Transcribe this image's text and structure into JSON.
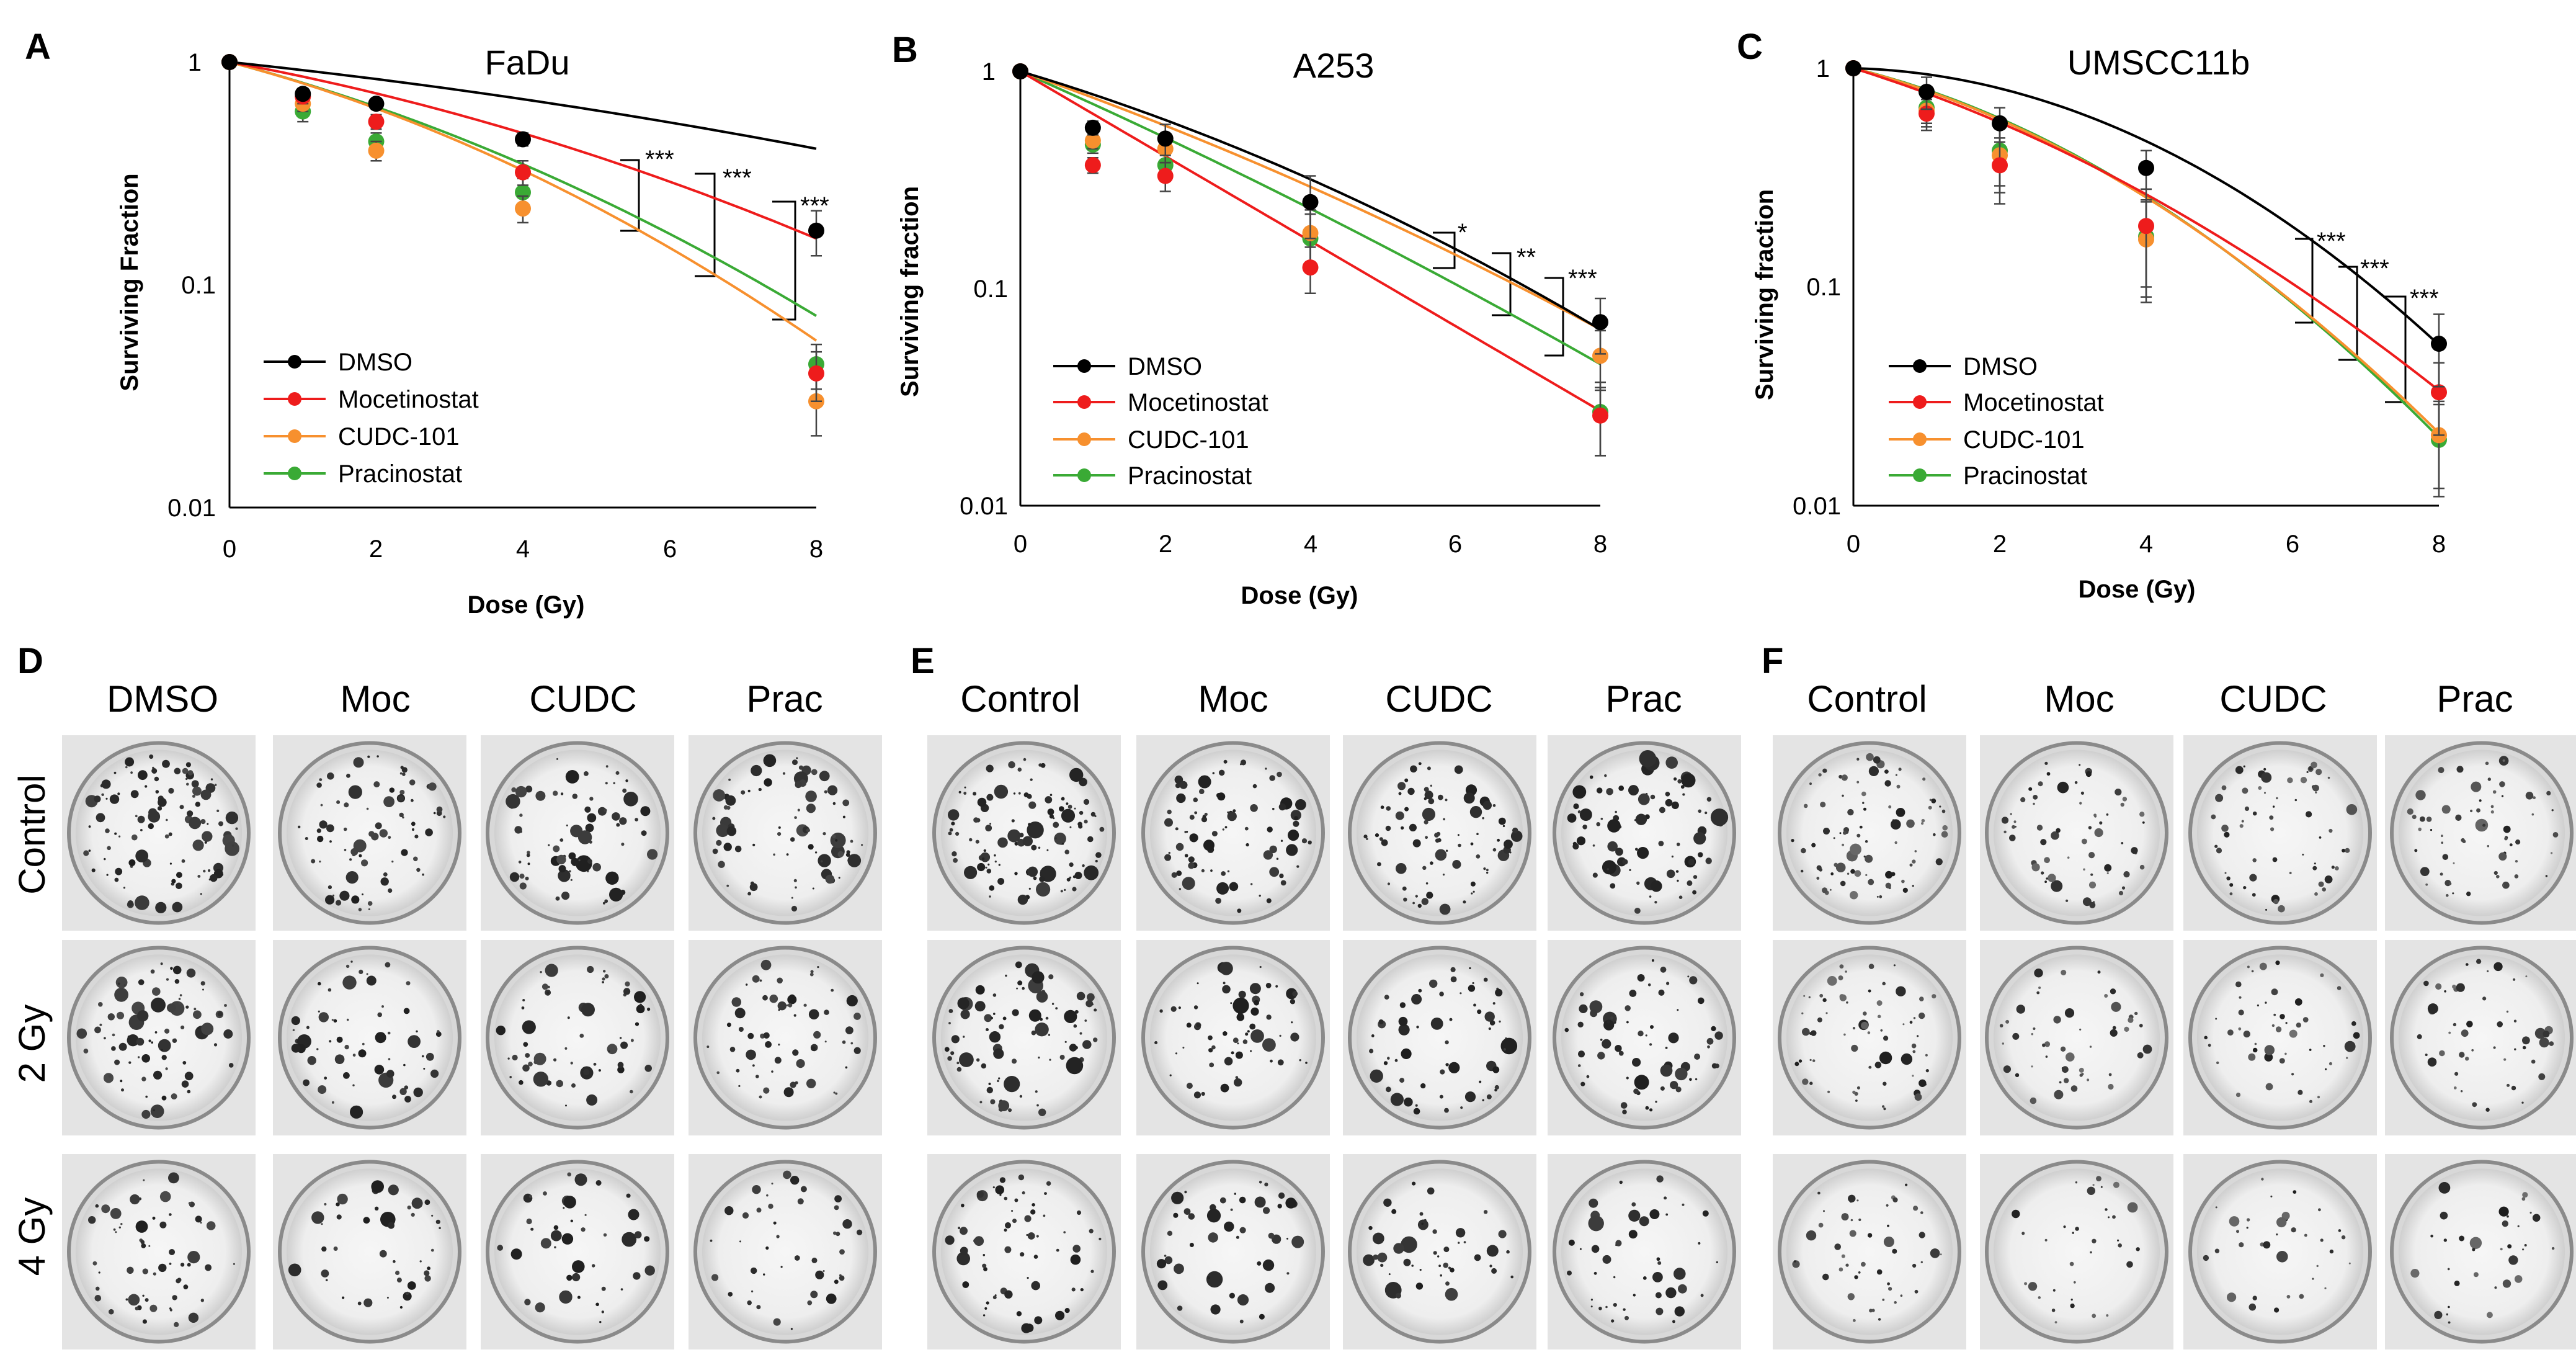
{
  "colors": {
    "DMSO": "#000000",
    "Mocetinostat": "#ee1c1c",
    "CUDC-101": "#f7902e",
    "Pracinostat": "#3aaa35"
  },
  "chart_data": [
    {
      "panel": "A",
      "type": "line",
      "title": "FaDu",
      "xlabel": "Dose (Gy)",
      "ylabel": "Surviving Fraction",
      "xlim": [
        0,
        8
      ],
      "ylim": [
        0.01,
        1
      ],
      "yscale": "log",
      "xticks": [
        "0",
        "2",
        "4",
        "6",
        "8"
      ],
      "yticks": [
        "0.01",
        "0.1",
        "1"
      ],
      "x": [
        0,
        1,
        2,
        4,
        8
      ],
      "series": [
        {
          "name": "DMSO",
          "values": [
            1,
            0.72,
            0.65,
            0.45,
            0.175
          ],
          "errors": [
            0,
            0.04,
            0.03,
            0.03,
            0.04
          ],
          "fit": [
            0.08,
            0.004
          ]
        },
        {
          "name": "Mocetinostat",
          "values": [
            1,
            0.7,
            0.54,
            0.32,
            0.04
          ],
          "errors": [
            0,
            0.05,
            0.04,
            0.04,
            0.01
          ],
          "fit": [
            0.14,
            0.011
          ]
        },
        {
          "name": "CUDC-101",
          "values": [
            1,
            0.65,
            0.4,
            0.22,
            0.03
          ],
          "errors": [
            0,
            0.05,
            0.04,
            0.03,
            0.009
          ],
          "fit": [
            0.2,
            0.02
          ]
        },
        {
          "name": "Pracinostat",
          "values": [
            1,
            0.6,
            0.44,
            0.26,
            0.044
          ],
          "errors": [
            0,
            0.06,
            0.04,
            0.04,
            0.01
          ],
          "fit": [
            0.2,
            0.016
          ]
        }
      ],
      "significance": [
        "***",
        "***",
        "***"
      ]
    },
    {
      "panel": "B",
      "type": "line",
      "title": "A253",
      "xlabel": "Dose (Gy)",
      "ylabel": "Surviving fraction",
      "xlim": [
        0,
        8
      ],
      "ylim": [
        0.01,
        1
      ],
      "yscale": "log",
      "xticks": [
        "0",
        "2",
        "4",
        "6",
        "8"
      ],
      "yticks": [
        "0.01",
        "0.1",
        "1"
      ],
      "x": [
        0,
        1,
        2,
        4,
        8
      ],
      "series": [
        {
          "name": "DMSO",
          "values": [
            1,
            0.55,
            0.49,
            0.25,
            0.07
          ],
          "errors": [
            0,
            0.04,
            0.08,
            0.08,
            0.02
          ],
          "fit": [
            0.23,
            0.014
          ]
        },
        {
          "name": "Mocetinostat",
          "values": [
            1,
            0.37,
            0.33,
            0.125,
            0.026
          ],
          "errors": [
            0,
            0.03,
            0.05,
            0.03,
            0.009
          ],
          "fit": [
            0.45,
            0.0
          ]
        },
        {
          "name": "CUDC-101",
          "values": [
            1,
            0.48,
            0.44,
            0.18,
            0.049
          ],
          "errors": [
            0,
            0.04,
            0.06,
            0.05,
            0.015
          ],
          "fit": [
            0.27,
            0.009
          ]
        },
        {
          "name": "Pracinostat",
          "values": [
            1,
            0.46,
            0.37,
            0.17,
            0.027
          ],
          "errors": [
            0,
            0.04,
            0.05,
            0.05,
            0.01
          ],
          "fit": [
            0.34,
            0.006
          ]
        }
      ],
      "significance": [
        "*",
        "**",
        "***"
      ]
    },
    {
      "panel": "C",
      "type": "line",
      "title": "UMSCC11b",
      "xlabel": "Dose (Gy)",
      "ylabel": "Surviving fraction",
      "xlim": [
        0,
        8
      ],
      "ylim": [
        0.01,
        1
      ],
      "yscale": "log",
      "xticks": [
        "0",
        "2",
        "4",
        "6",
        "8"
      ],
      "yticks": [
        "0.01",
        "0.1",
        "1"
      ],
      "x": [
        0,
        1,
        2,
        4,
        8
      ],
      "series": [
        {
          "name": "DMSO",
          "values": [
            1,
            0.78,
            0.56,
            0.35,
            0.055
          ],
          "errors": [
            0,
            0.13,
            0.1,
            0.07,
            0.02
          ],
          "fit": [
            0.02,
            0.043
          ]
        },
        {
          "name": "Mocetinostat",
          "values": [
            1,
            0.62,
            0.36,
            0.19,
            0.033
          ],
          "errors": [
            0,
            0.1,
            0.12,
            0.09,
            0.012
          ],
          "fit": [
            0.24,
            0.023
          ]
        },
        {
          "name": "CUDC-101",
          "values": [
            1,
            0.64,
            0.4,
            0.165,
            0.021
          ],
          "errors": [
            0,
            0.1,
            0.13,
            0.08,
            0.009
          ],
          "fit": [
            0.2,
            0.035
          ]
        },
        {
          "name": "Pracinostat",
          "values": [
            1,
            0.66,
            0.42,
            0.17,
            0.02
          ],
          "errors": [
            0,
            0.1,
            0.13,
            0.08,
            0.009
          ],
          "fit": [
            0.19,
            0.037
          ]
        }
      ],
      "significance": [
        "***",
        "***",
        "***"
      ]
    }
  ],
  "panels": {
    "D": {
      "letter": "D",
      "cols": [
        "DMSO",
        "Moc",
        "CUDC",
        "Prac"
      ],
      "rows": [
        "Control",
        "2 Gy",
        "4 Gy"
      ]
    },
    "E": {
      "letter": "E",
      "cols": [
        "Control",
        "Moc",
        "CUDC",
        "Prac"
      ]
    },
    "F": {
      "letter": "F",
      "cols": [
        "Control",
        "Moc",
        "CUDC",
        "Prac"
      ]
    }
  }
}
